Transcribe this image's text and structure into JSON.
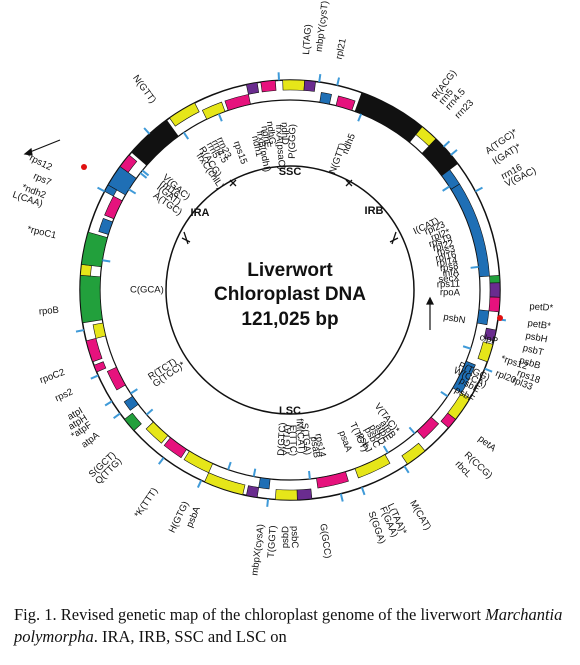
{
  "center": {
    "line1": "Liverwort",
    "line2": "Chloroplast DNA",
    "line3": "121,025 bp"
  },
  "regions": {
    "ssc": "SSC",
    "lsc": "LSC",
    "ira": "IRA",
    "irb": "IRB"
  },
  "colors": {
    "yellow": "#e6e619",
    "green": "#22a03c",
    "magenta": "#e6127d",
    "blue": "#1f6fb5",
    "purple": "#6a2c8f",
    "black": "#111111",
    "light_blue": "#3f9ad8"
  },
  "labels": [
    {
      "text": "N(GTT)"
    },
    {
      "text": "rps15"
    },
    {
      "text": "ndh1"
    },
    {
      "text": "frxB(ndhI)"
    },
    {
      "text": "ndhE"
    },
    {
      "text": "ndhG"
    },
    {
      "text": "frxA(psaC)"
    },
    {
      "text": "ndhD"
    },
    {
      "text": "P(GGG)"
    },
    {
      "text": "L(TAG)"
    },
    {
      "text": "mbpY(cysT)"
    },
    {
      "text": "rpl21"
    },
    {
      "text": "ndh5"
    },
    {
      "text": "N(GTT)"
    },
    {
      "text": "R(ACG)"
    },
    {
      "text": "rrn5"
    },
    {
      "text": "rrn4.5"
    },
    {
      "text": "rrn23"
    },
    {
      "text": "A(TGC)*"
    },
    {
      "text": "I(GAT)*"
    },
    {
      "text": "rrn16"
    },
    {
      "text": "V(GAC)"
    },
    {
      "text": "frxC(chlL)"
    },
    {
      "text": "R(ACG)"
    },
    {
      "text": "rrn5"
    },
    {
      "text": "rrn4.5"
    },
    {
      "text": "rrn23"
    },
    {
      "text": "*rps12"
    },
    {
      "text": "rps7"
    },
    {
      "text": "*ndh2"
    },
    {
      "text": "L(CAA)"
    },
    {
      "text": "A(TGC)"
    },
    {
      "text": "I(GAT)"
    },
    {
      "text": "rrn16"
    },
    {
      "text": "V(GAC)"
    },
    {
      "text": "I(CAT)"
    },
    {
      "text": "rpl23"
    },
    {
      "text": "rpl2*"
    },
    {
      "text": "rps19"
    },
    {
      "text": "rpl22"
    },
    {
      "text": "rps3"
    },
    {
      "text": "rpl16"
    },
    {
      "text": "rpl14"
    },
    {
      "text": "rps8"
    },
    {
      "text": "infA"
    },
    {
      "text": "secX"
    },
    {
      "text": "rps11"
    },
    {
      "text": "rpoA"
    },
    {
      "text": "rpoB"
    },
    {
      "text": "C(GCA)"
    },
    {
      "text": "*rpoC1"
    },
    {
      "text": "rpoC2"
    },
    {
      "text": "petD*"
    },
    {
      "text": "petB*"
    },
    {
      "text": "psbH"
    },
    {
      "text": "psbT"
    },
    {
      "text": "psbB"
    },
    {
      "text": "psbN"
    },
    {
      "text": "clpP"
    },
    {
      "text": "*rps12"
    },
    {
      "text": "rpl20"
    },
    {
      "text": "P(TGG)"
    },
    {
      "text": "W(CCA)"
    },
    {
      "text": "psbE"
    },
    {
      "text": "psbF"
    },
    {
      "text": "rps18"
    },
    {
      "text": "rpl33"
    },
    {
      "text": "rps2"
    },
    {
      "text": "atpI"
    },
    {
      "text": "atpH"
    },
    {
      "text": "*atpF"
    },
    {
      "text": "atpA"
    },
    {
      "text": "R(TCT)"
    },
    {
      "text": "G(TCC)*"
    },
    {
      "text": "petA"
    },
    {
      "text": "S(GCT)"
    },
    {
      "text": "Q(TTG)"
    },
    {
      "text": "R(CCG)"
    },
    {
      "text": "rbcL"
    },
    {
      "text": "*K(TTT)"
    },
    {
      "text": "psbA"
    },
    {
      "text": "H(GTG)"
    },
    {
      "text": "V(TAC)*"
    },
    {
      "text": "atpB"
    },
    {
      "text": "atpE"
    },
    {
      "text": "psbD"
    },
    {
      "text": "psbC"
    },
    {
      "text": "T(TGT)"
    },
    {
      "text": "psbJ"
    },
    {
      "text": "M(CAT)"
    },
    {
      "text": "D(GTC)"
    },
    {
      "text": "Y(GTA)"
    },
    {
      "text": "E(TTC)"
    },
    {
      "text": "fM(CAT)"
    },
    {
      "text": "S(TGA)"
    },
    {
      "text": "psaB"
    },
    {
      "text": "rps14"
    },
    {
      "text": "psaA"
    },
    {
      "text": "mbpX(cysA)"
    },
    {
      "text": "T(GGT)"
    },
    {
      "text": "psbD"
    },
    {
      "text": "psbC"
    },
    {
      "text": "G(GCC)"
    },
    {
      "text": "S(GGA)"
    },
    {
      "text": "F(GAA)"
    },
    {
      "text": "L(TAA)*"
    }
  ],
  "caption": {
    "prefix": "Fig. 1.   Revised genetic map of the chloroplast genome of the liverwort ",
    "species": "Marchantia polymorpha",
    "suffix": ". IRA, IRB, SSC and LSC on"
  }
}
